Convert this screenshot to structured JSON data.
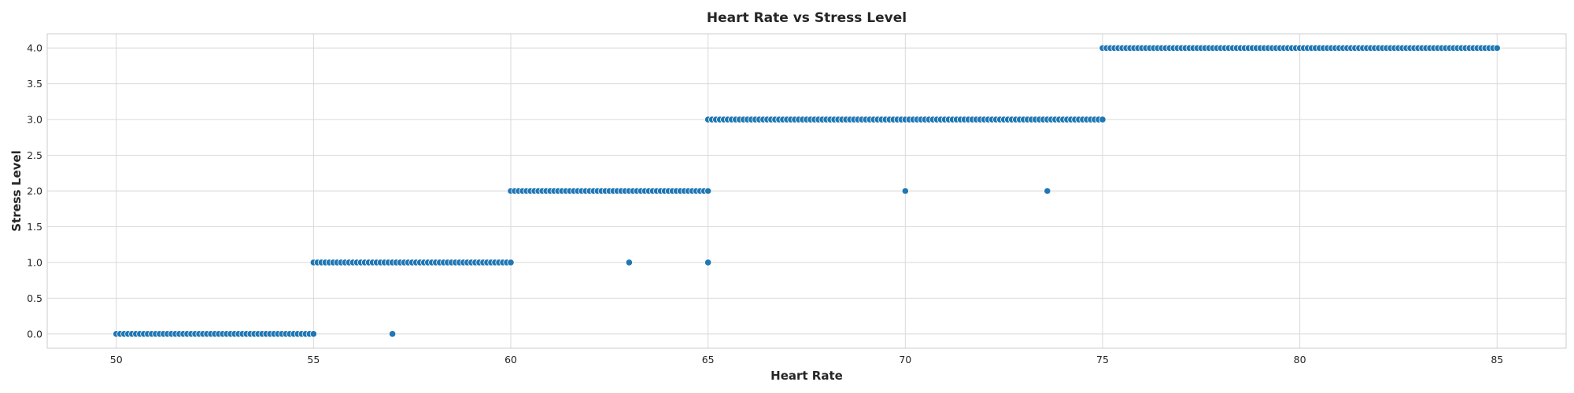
{
  "chart_data": {
    "type": "scatter",
    "title": "Heart Rate vs Stress Level",
    "xlabel": "Heart Rate",
    "ylabel": "Stress Level",
    "xlim": [
      48.25,
      86.75
    ],
    "ylim": [
      -0.2,
      4.2
    ],
    "xticks": [
      50,
      55,
      60,
      65,
      70,
      75,
      80,
      85
    ],
    "xtick_labels": [
      "50",
      "55",
      "60",
      "65",
      "70",
      "75",
      "80",
      "85"
    ],
    "yticks": [
      0,
      0.5,
      1,
      1.5,
      2,
      2.5,
      3,
      3.5,
      4
    ],
    "ytick_labels": [
      "0.0",
      "0.5",
      "1.0",
      "1.5",
      "2.0",
      "2.5",
      "3.0",
      "3.5",
      "4.0"
    ],
    "grid": true,
    "marker_color": "#1f77b4",
    "bands": [
      {
        "y": 0,
        "x_min": 50,
        "x_max": 55
      },
      {
        "y": 1,
        "x_min": 55,
        "x_max": 60
      },
      {
        "y": 2,
        "x_min": 60,
        "x_max": 65
      },
      {
        "y": 3,
        "x_min": 65,
        "x_max": 75
      },
      {
        "y": 4,
        "x_min": 75,
        "x_max": 85
      }
    ],
    "outliers": [
      {
        "x": 57,
        "y": 0
      },
      {
        "x": 63,
        "y": 1
      },
      {
        "x": 65,
        "y": 1
      },
      {
        "x": 70,
        "y": 2
      },
      {
        "x": 73.6,
        "y": 2
      }
    ]
  }
}
